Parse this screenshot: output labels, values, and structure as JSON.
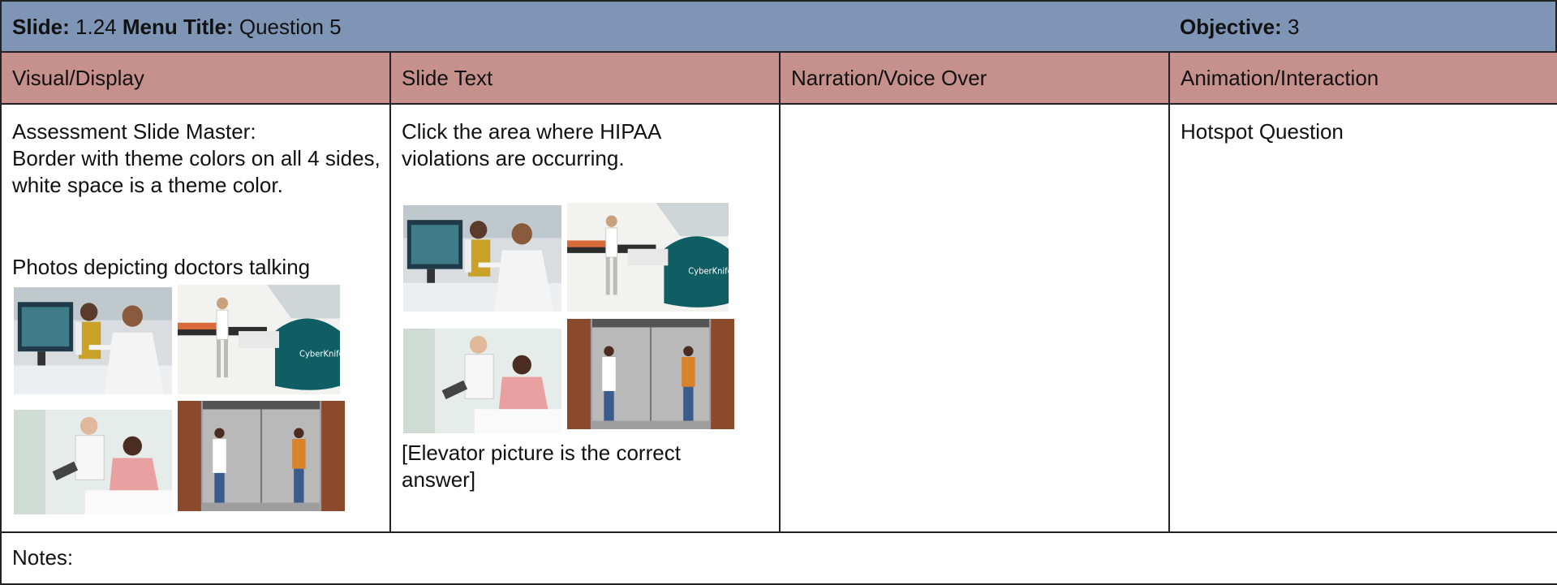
{
  "header": {
    "slide_label": "Slide:",
    "slide": "1.24",
    "menu_title_label": "Menu Title:",
    "menu_title": "Question 5",
    "objective_label": "Objective:",
    "objective": "3"
  },
  "columns": [
    "Visual/Display",
    "Slide Text",
    "Narration/Voice Over",
    "Animation/Interaction"
  ],
  "row": {
    "visual": [
      "Assessment Slide Master:",
      "Border with theme colors on all 4 sides, white space is a theme color.",
      "Photos depicting doctors talking"
    ],
    "slide_text": [
      "Click the area where HIPAA violations are occurring.",
      "[Elevator picture is the correct answer]"
    ],
    "animation": "Hotspot Question"
  },
  "notes_label": "Notes:"
}
